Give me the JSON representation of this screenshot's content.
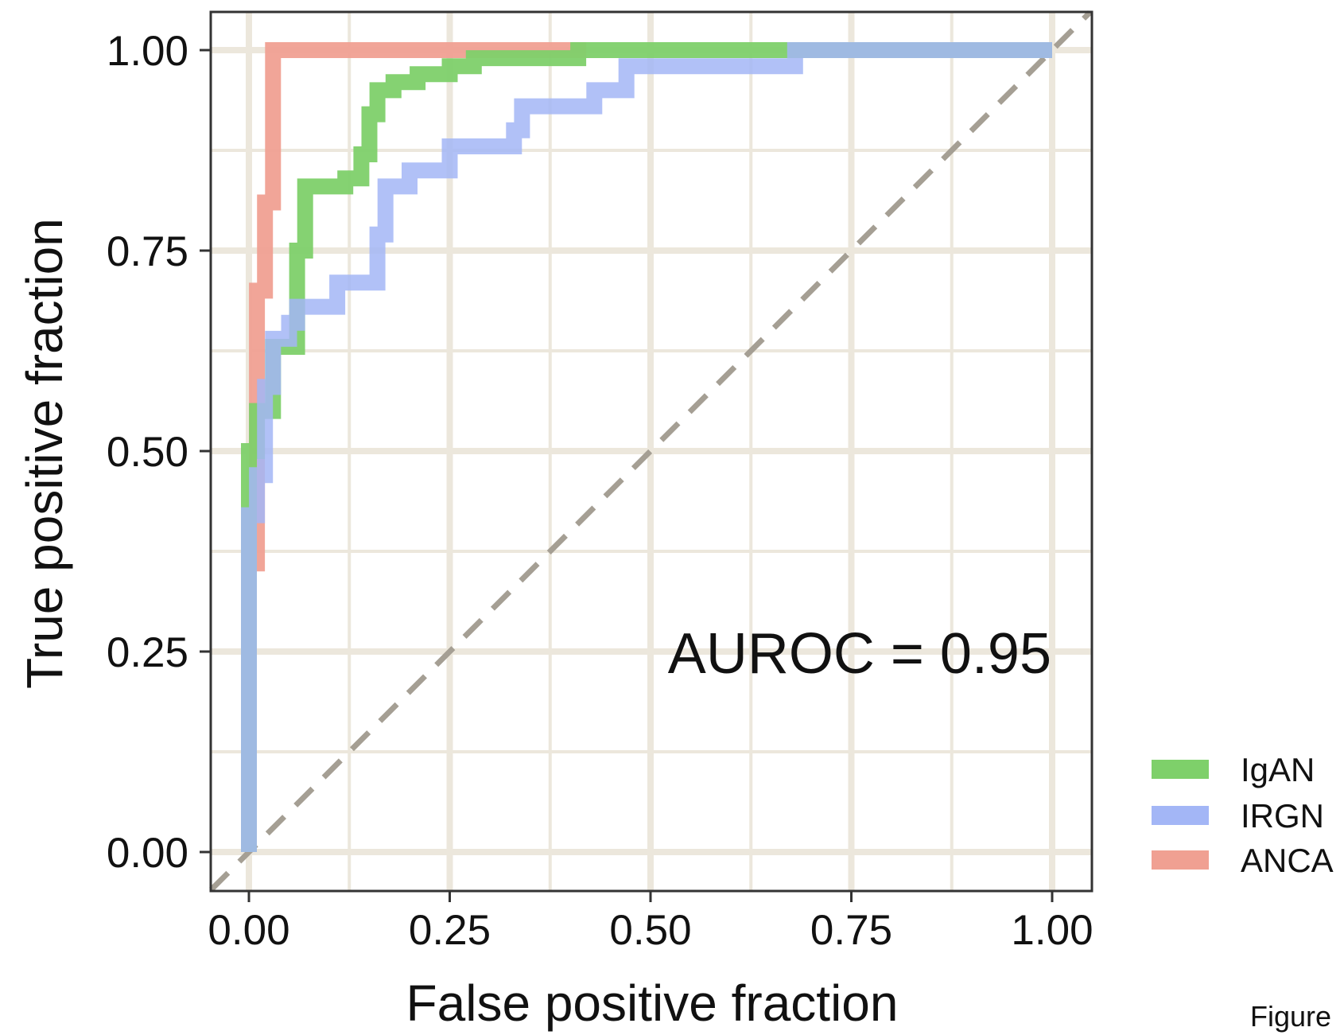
{
  "colors": {
    "grid": "#ece7dc",
    "panel_border": "#333333",
    "diagonal": "#a59f94"
  },
  "figure_caption": "Figure",
  "chart_data": {
    "type": "line",
    "xlabel": "False positive fraction",
    "ylabel": "True positive fraction",
    "xlim": [
      0,
      1
    ],
    "ylim": [
      0,
      1
    ],
    "xticks": [
      "0.00",
      "0.25",
      "0.50",
      "0.75",
      "1.00"
    ],
    "yticks": [
      "0.00",
      "0.25",
      "0.50",
      "0.75",
      "1.00"
    ],
    "grid": true,
    "legend_position": "bottom-right",
    "annotation": "AUROC = 0.95",
    "reference_line": {
      "from": [
        0,
        0
      ],
      "to": [
        1,
        1
      ],
      "style": "dashed"
    },
    "series": [
      {
        "name": "IgAN",
        "color": "#7ed06a",
        "points": [
          [
            0,
            0
          ],
          [
            0,
            0.42
          ],
          [
            0,
            0.5
          ],
          [
            0.01,
            0.5
          ],
          [
            0.01,
            0.55
          ],
          [
            0.03,
            0.55
          ],
          [
            0.03,
            0.63
          ],
          [
            0.06,
            0.63
          ],
          [
            0.06,
            0.75
          ],
          [
            0.07,
            0.75
          ],
          [
            0.07,
            0.83
          ],
          [
            0.12,
            0.83
          ],
          [
            0.12,
            0.84
          ],
          [
            0.14,
            0.84
          ],
          [
            0.14,
            0.87
          ],
          [
            0.15,
            0.87
          ],
          [
            0.15,
            0.92
          ],
          [
            0.16,
            0.92
          ],
          [
            0.16,
            0.95
          ],
          [
            0.18,
            0.95
          ],
          [
            0.18,
            0.96
          ],
          [
            0.21,
            0.96
          ],
          [
            0.21,
            0.97
          ],
          [
            0.25,
            0.97
          ],
          [
            0.25,
            0.98
          ],
          [
            0.28,
            0.98
          ],
          [
            0.28,
            0.99
          ],
          [
            0.33,
            0.99
          ],
          [
            0.41,
            0.99
          ],
          [
            0.41,
            1.0
          ],
          [
            0.68,
            1.0
          ],
          [
            1.0,
            1.0
          ]
        ]
      },
      {
        "name": "IRGN",
        "color": "#a3b6f6",
        "points": [
          [
            0,
            0
          ],
          [
            0,
            0.42
          ],
          [
            0.01,
            0.42
          ],
          [
            0.01,
            0.47
          ],
          [
            0.02,
            0.47
          ],
          [
            0.02,
            0.58
          ],
          [
            0.03,
            0.58
          ],
          [
            0.03,
            0.64
          ],
          [
            0.05,
            0.64
          ],
          [
            0.05,
            0.66
          ],
          [
            0.06,
            0.66
          ],
          [
            0.06,
            0.68
          ],
          [
            0.11,
            0.68
          ],
          [
            0.11,
            0.71
          ],
          [
            0.16,
            0.71
          ],
          [
            0.16,
            0.77
          ],
          [
            0.17,
            0.77
          ],
          [
            0.17,
            0.83
          ],
          [
            0.2,
            0.83
          ],
          [
            0.2,
            0.85
          ],
          [
            0.25,
            0.85
          ],
          [
            0.25,
            0.88
          ],
          [
            0.33,
            0.88
          ],
          [
            0.33,
            0.9
          ],
          [
            0.34,
            0.9
          ],
          [
            0.34,
            0.93
          ],
          [
            0.43,
            0.93
          ],
          [
            0.43,
            0.95
          ],
          [
            0.47,
            0.95
          ],
          [
            0.47,
            0.98
          ],
          [
            0.68,
            0.98
          ],
          [
            0.68,
            1.0
          ],
          [
            1.0,
            1.0
          ]
        ]
      },
      {
        "name": "ANCA",
        "color": "#f0a092",
        "points": [
          [
            0.01,
            0.35
          ],
          [
            0.01,
            0.7
          ],
          [
            0.02,
            0.7
          ],
          [
            0.02,
            0.81
          ],
          [
            0.03,
            0.81
          ],
          [
            0.03,
            1.0
          ],
          [
            0.42,
            1.0
          ]
        ]
      }
    ]
  }
}
